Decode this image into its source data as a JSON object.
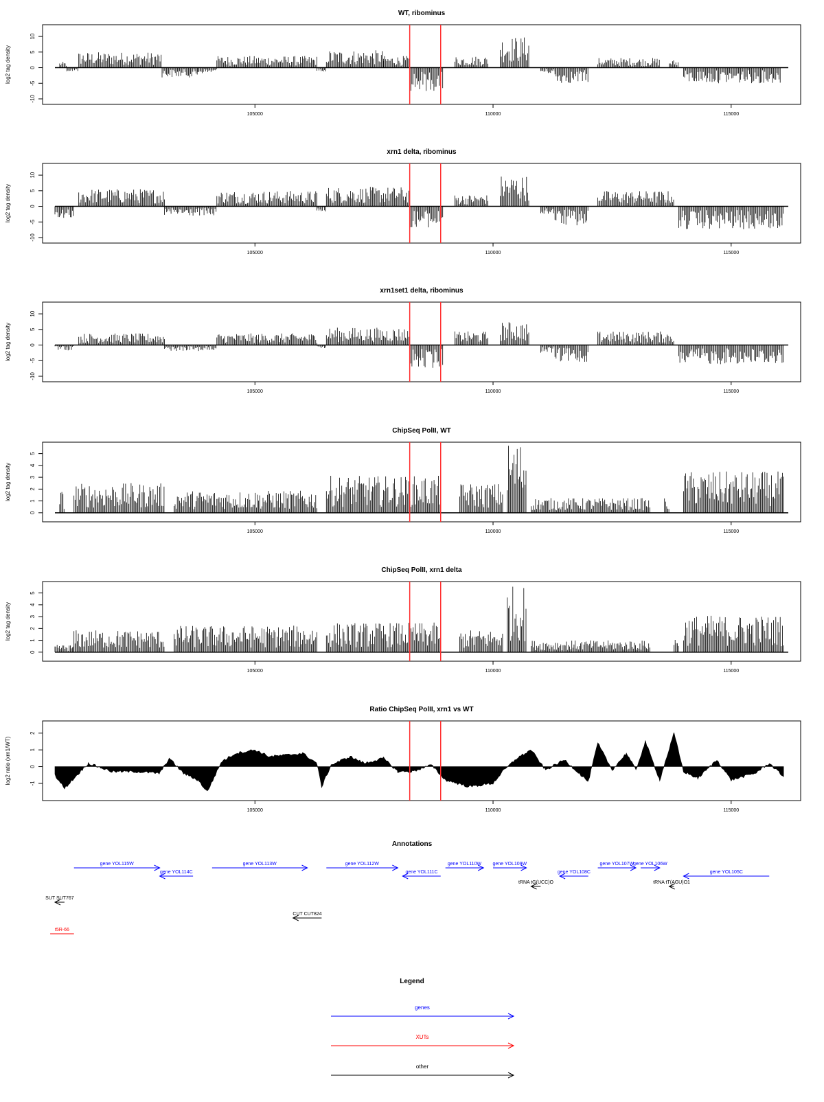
{
  "xaxis": {
    "xlim": [
      100800,
      116200
    ],
    "ticks": [
      105000,
      110000,
      115000
    ]
  },
  "highlight_lines": {
    "color": "#ff3030",
    "x": [
      108250,
      108900
    ]
  },
  "chart_data": [
    {
      "type": "bar",
      "title": "WT, ribominus",
      "ylabel": "log2 tag density",
      "ylim": [
        -10,
        12
      ],
      "yticks": [
        -10,
        -5,
        0,
        5,
        10
      ],
      "regions": [
        {
          "start": 100900,
          "end": 101050,
          "value": 1.5
        },
        {
          "start": 101050,
          "end": 101300,
          "value": -1
        },
        {
          "start": 101300,
          "end": 103050,
          "value": 4
        },
        {
          "start": 103050,
          "end": 103800,
          "value": -2.5
        },
        {
          "start": 103800,
          "end": 104200,
          "value": -1.5
        },
        {
          "start": 104200,
          "end": 106300,
          "value": 3
        },
        {
          "start": 106300,
          "end": 106500,
          "value": -1
        },
        {
          "start": 106500,
          "end": 107700,
          "value": 4.5
        },
        {
          "start": 107700,
          "end": 108250,
          "value": 3
        },
        {
          "start": 108250,
          "end": 108950,
          "value": -6
        },
        {
          "start": 109200,
          "end": 109900,
          "value": 3
        },
        {
          "start": 110150,
          "end": 110750,
          "value": 8
        },
        {
          "start": 111000,
          "end": 111300,
          "value": -1.5
        },
        {
          "start": 111300,
          "end": 112000,
          "value": -4
        },
        {
          "start": 112200,
          "end": 113500,
          "value": 2.5
        },
        {
          "start": 113700,
          "end": 113900,
          "value": 2
        },
        {
          "start": 114000,
          "end": 116050,
          "value": -4
        }
      ]
    },
    {
      "type": "bar",
      "title": "xrn1 delta, ribominus",
      "ylabel": "log2 tag density",
      "ylim": [
        -10,
        12
      ],
      "yticks": [
        -10,
        -5,
        0,
        5,
        10
      ],
      "regions": [
        {
          "start": 100800,
          "end": 101200,
          "value": -3
        },
        {
          "start": 101300,
          "end": 103100,
          "value": 4.5
        },
        {
          "start": 103100,
          "end": 104200,
          "value": -2.5
        },
        {
          "start": 104200,
          "end": 106300,
          "value": 4
        },
        {
          "start": 106300,
          "end": 106500,
          "value": -1.5
        },
        {
          "start": 106500,
          "end": 108250,
          "value": 5
        },
        {
          "start": 108250,
          "end": 108950,
          "value": -5.5
        },
        {
          "start": 109200,
          "end": 109900,
          "value": 3
        },
        {
          "start": 110150,
          "end": 110750,
          "value": 8
        },
        {
          "start": 111000,
          "end": 111300,
          "value": -2
        },
        {
          "start": 111300,
          "end": 112000,
          "value": -5
        },
        {
          "start": 112200,
          "end": 113800,
          "value": 4
        },
        {
          "start": 113900,
          "end": 116100,
          "value": -6
        }
      ]
    },
    {
      "type": "bar",
      "title": "xrn1set1 delta, ribominus",
      "ylabel": "log2 tag density",
      "ylim": [
        -10,
        12
      ],
      "yticks": [
        -10,
        -5,
        0,
        5,
        10
      ],
      "regions": [
        {
          "start": 100800,
          "end": 101200,
          "value": -1.5
        },
        {
          "start": 101300,
          "end": 103100,
          "value": 3
        },
        {
          "start": 103100,
          "end": 104200,
          "value": -1.5
        },
        {
          "start": 104200,
          "end": 106300,
          "value": 3
        },
        {
          "start": 106300,
          "end": 106500,
          "value": -1
        },
        {
          "start": 106500,
          "end": 108250,
          "value": 4.5
        },
        {
          "start": 108250,
          "end": 108950,
          "value": -6
        },
        {
          "start": 109200,
          "end": 109900,
          "value": 3.5
        },
        {
          "start": 110150,
          "end": 110750,
          "value": 6
        },
        {
          "start": 111000,
          "end": 111300,
          "value": -2
        },
        {
          "start": 111300,
          "end": 112000,
          "value": -4.5
        },
        {
          "start": 112200,
          "end": 113800,
          "value": 3.5
        },
        {
          "start": 113900,
          "end": 116100,
          "value": -5
        }
      ]
    },
    {
      "type": "bar",
      "title": "ChipSeq PolII, WT",
      "ylabel": "log2 tag density",
      "ylim": [
        -0.3,
        5.5
      ],
      "yticks": [
        0,
        1,
        2,
        3,
        4,
        5
      ],
      "regions": [
        {
          "start": 100900,
          "end": 101000,
          "value": 1.5
        },
        {
          "start": 101200,
          "end": 103100,
          "value": 2
        },
        {
          "start": 103300,
          "end": 106300,
          "value": 1.5
        },
        {
          "start": 106500,
          "end": 108900,
          "value": 2.5
        },
        {
          "start": 109300,
          "end": 110200,
          "value": 2
        },
        {
          "start": 110300,
          "end": 110700,
          "value": 4.8
        },
        {
          "start": 110800,
          "end": 113300,
          "value": 1
        },
        {
          "start": 113600,
          "end": 113700,
          "value": 1
        },
        {
          "start": 114000,
          "end": 116100,
          "value": 2.8
        }
      ]
    },
    {
      "type": "bar",
      "title": "ChipSeq PolII, xrn1 delta",
      "ylabel": "log2 tag density",
      "ylim": [
        -0.3,
        5.5
      ],
      "yticks": [
        0,
        1,
        2,
        3,
        4,
        5
      ],
      "regions": [
        {
          "start": 100800,
          "end": 101200,
          "value": 0.5
        },
        {
          "start": 101200,
          "end": 103100,
          "value": 1.5
        },
        {
          "start": 103300,
          "end": 106300,
          "value": 1.8
        },
        {
          "start": 106500,
          "end": 108900,
          "value": 2
        },
        {
          "start": 109300,
          "end": 110200,
          "value": 1.5
        },
        {
          "start": 110300,
          "end": 110700,
          "value": 4.5
        },
        {
          "start": 110800,
          "end": 113300,
          "value": 0.8
        },
        {
          "start": 113800,
          "end": 113900,
          "value": 1
        },
        {
          "start": 114000,
          "end": 116100,
          "value": 2.5
        }
      ]
    },
    {
      "type": "area",
      "title": "Ratio ChipSeq PolII, xrn1 vs WT",
      "ylabel": "log2 ratio (xrn1/WT)",
      "ylim": [
        -1.7,
        2.4
      ],
      "yticks": [
        -1,
        0,
        1,
        2
      ],
      "x": [
        100800,
        101000,
        101500,
        102000,
        102500,
        103000,
        103200,
        103500,
        103800,
        104000,
        104300,
        104600,
        105000,
        105300,
        105700,
        106000,
        106300,
        106400,
        106600,
        107000,
        107300,
        107700,
        108000,
        108300,
        108700,
        109000,
        109500,
        110000,
        110200,
        110500,
        110800,
        111100,
        111500,
        112000,
        112200,
        112500,
        112800,
        113000,
        113200,
        113500,
        113800,
        114000,
        114300,
        114700,
        115000,
        115500,
        115800,
        116100
      ],
      "values": [
        -0.5,
        -1.3,
        0.2,
        -0.3,
        -0.3,
        -0.4,
        0.5,
        -0.4,
        -0.8,
        -1.5,
        0.3,
        0.8,
        1.0,
        0.6,
        0.7,
        0.8,
        0.2,
        -1.2,
        0.1,
        0.6,
        0.2,
        0.5,
        -0.3,
        -0.3,
        0.1,
        -0.8,
        -1.2,
        -1.0,
        -0.3,
        0.5,
        1.0,
        -0.2,
        0.4,
        -0.9,
        1.4,
        -0.2,
        0.8,
        -0.2,
        1.5,
        -0.8,
        2.0,
        -0.3,
        -0.7,
        0.4,
        -0.8,
        -0.4,
        0.2,
        -0.6
      ]
    }
  ],
  "annotations": {
    "title": "Annotations",
    "features": [
      {
        "label": "gene YOL115W",
        "start": 101200,
        "end": 103000,
        "strand": "+",
        "row": 0,
        "color": "#0000ff"
      },
      {
        "label": "gene YOL114C",
        "start": 103000,
        "end": 103700,
        "strand": "-",
        "row": 1,
        "color": "#0000ff"
      },
      {
        "label": "gene YOL113W",
        "start": 104100,
        "end": 106100,
        "strand": "+",
        "row": 0,
        "color": "#0000ff"
      },
      {
        "label": "gene YOL112W",
        "start": 106500,
        "end": 108000,
        "strand": "+",
        "row": 0,
        "color": "#0000ff"
      },
      {
        "label": "gene YOL111C",
        "start": 108100,
        "end": 108900,
        "strand": "-",
        "row": 1,
        "color": "#0000ff"
      },
      {
        "label": "gene YOL110W",
        "start": 109000,
        "end": 109800,
        "strand": "+",
        "row": 0,
        "color": "#0000ff"
      },
      {
        "label": "gene YOL109W",
        "start": 110000,
        "end": 110700,
        "strand": "+",
        "row": 0,
        "color": "#0000ff"
      },
      {
        "label": "gene YOL108C",
        "start": 111400,
        "end": 112000,
        "strand": "-",
        "row": 1,
        "color": "#0000ff"
      },
      {
        "label": "gene YOL107W",
        "start": 112200,
        "end": 113000,
        "strand": "+",
        "row": 0,
        "color": "#0000ff"
      },
      {
        "label": "gene YOL106W",
        "start": 113100,
        "end": 113500,
        "strand": "+",
        "row": 0,
        "color": "#0000ff"
      },
      {
        "label": "gene YOL105C",
        "start": 114000,
        "end": 115800,
        "strand": "-",
        "row": 1,
        "color": "#0000ff"
      },
      {
        "label": "tRNA tG(UCC)O",
        "start": 110800,
        "end": 111000,
        "strand": "-",
        "row": 2,
        "color": "#000000"
      },
      {
        "label": "tRNA tT(AGU)O1",
        "start": 113700,
        "end": 113800,
        "strand": "-",
        "row": 2,
        "color": "#000000"
      },
      {
        "label": "SUT SUT767",
        "start": 100800,
        "end": 101000,
        "strand": "-",
        "row": 3,
        "color": "#000000"
      },
      {
        "label": "CUT CUT824",
        "start": 105800,
        "end": 106400,
        "strand": "-",
        "row": 4,
        "color": "#000000"
      },
      {
        "label": "t5R-66",
        "start": 100700,
        "end": 101200,
        "strand": "",
        "row": 5,
        "color": "#ff0000"
      }
    ]
  },
  "legend": {
    "title": "Legend",
    "items": [
      {
        "label": "genes",
        "color": "#0000ff"
      },
      {
        "label": "XUTs",
        "color": "#ff0000"
      },
      {
        "label": "other",
        "color": "#000000"
      }
    ]
  }
}
